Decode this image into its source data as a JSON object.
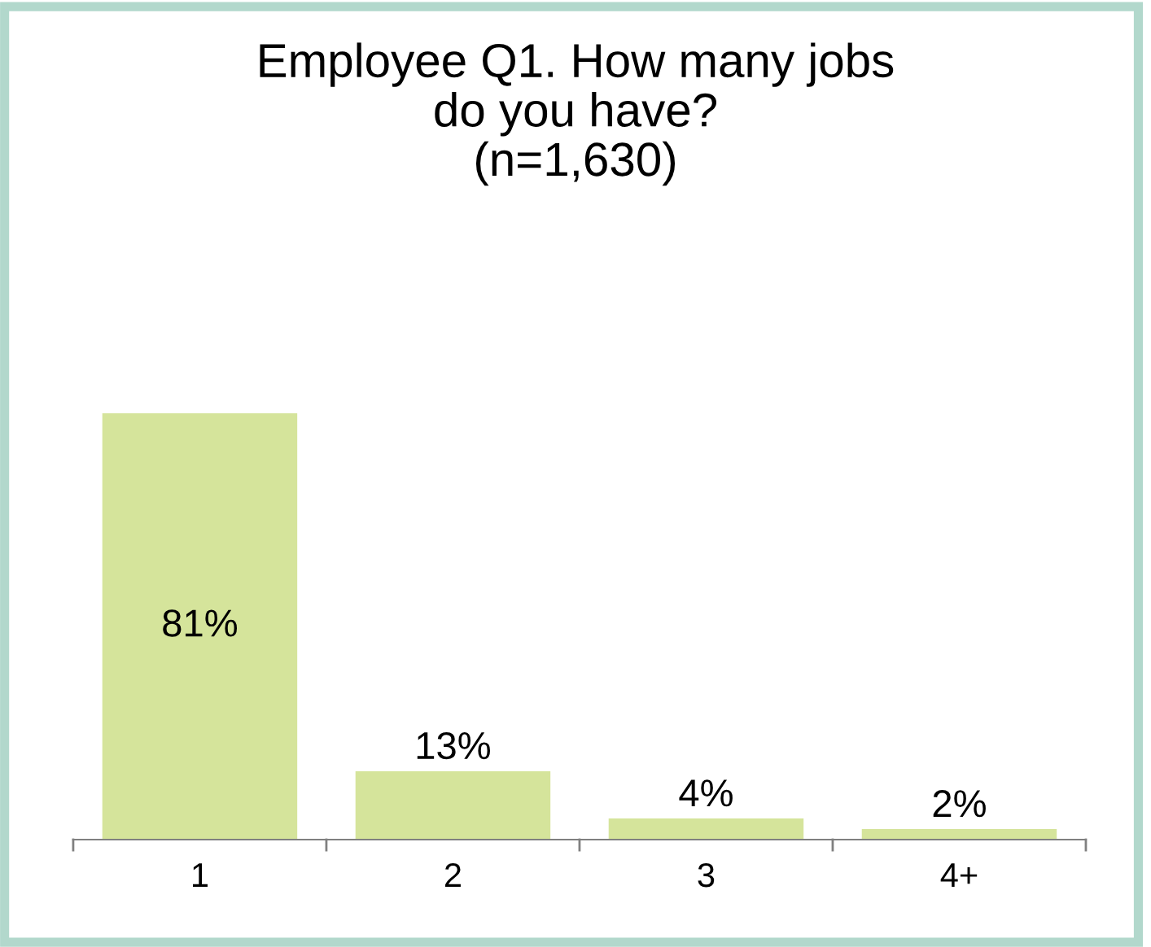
{
  "chart_data": {
    "type": "bar",
    "title": "Employee Q1. How many jobs\ndo you have?\n(n=1,630)",
    "categories": [
      "1",
      "2",
      "3",
      "4+"
    ],
    "values": [
      81,
      13,
      4,
      2
    ],
    "value_labels": [
      "81%",
      "13%",
      "4%",
      "2%"
    ],
    "color": "#d5e49b",
    "grid": false,
    "legend": false
  }
}
